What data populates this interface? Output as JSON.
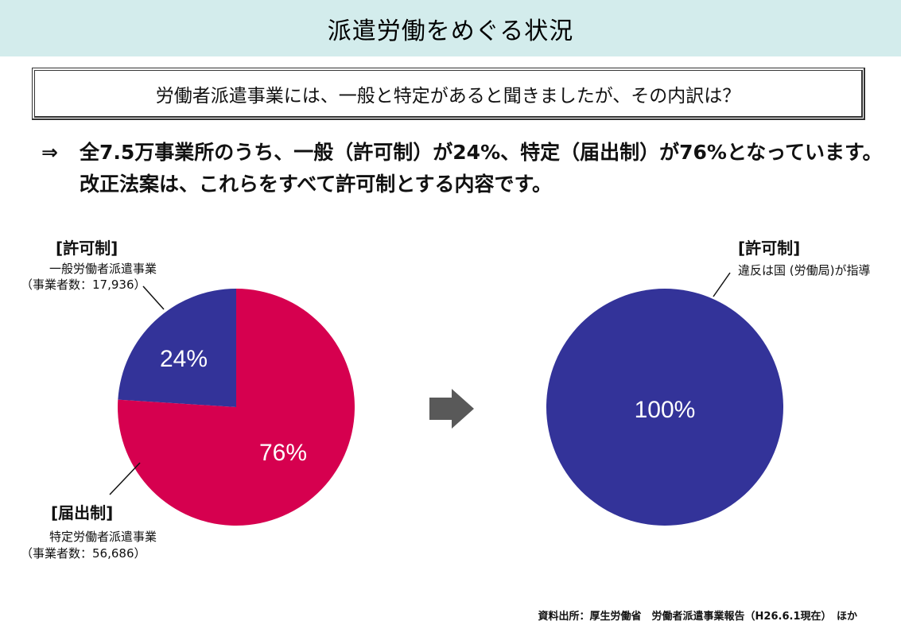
{
  "header": {
    "title": "派遣労働をめぐる状況"
  },
  "question": {
    "text": "労働者派遣事業には、一般と特定があると聞きましたが、その内訳は？"
  },
  "answer": {
    "arrow": "⇒",
    "line1": "全7.5万事業所のうち、一般（許可制）が24%、特定（届出制）が76%となっています。",
    "line2": "改正法案は、これらをすべて許可制とする内容です。"
  },
  "left_pie": {
    "license_label": "[許可制]",
    "license_sub1": "一般労働者派遣事業",
    "license_sub2": "（事業者数：17,936）",
    "notify_label": "[届出制]",
    "notify_sub1": "特定労働者派遣事業",
    "notify_sub2": "（事業者数：56,686）"
  },
  "right_pie": {
    "license_label": "[許可制]",
    "license_sub": "違反は国 (労働局)が指導"
  },
  "colors": {
    "license": "#333399",
    "notify": "#d6004f",
    "arrow": "#595959",
    "title_bg": "#d3ecec"
  },
  "source": "資料出所：厚生労働省　労働者派遣事業報告（H26.6.1現在）　ほか",
  "chart_data": [
    {
      "type": "pie",
      "labels": [
        "許可制",
        "届出制"
      ],
      "values": [
        24,
        76
      ],
      "value_labels": [
        "24%",
        "76%"
      ],
      "colors": [
        "#333399",
        "#d6004f"
      ]
    },
    {
      "type": "pie",
      "labels": [
        "許可制"
      ],
      "values": [
        100
      ],
      "value_labels": [
        "100%"
      ],
      "colors": [
        "#333399"
      ]
    }
  ]
}
